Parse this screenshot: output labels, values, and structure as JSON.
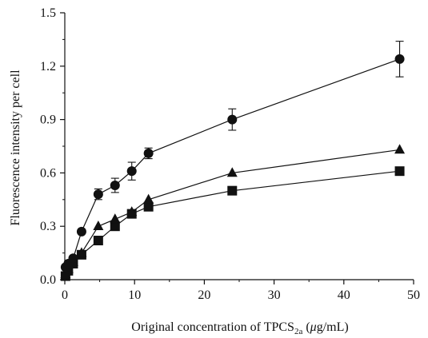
{
  "chart_data": {
    "type": "scatter",
    "title": "",
    "xlabel": {
      "pre": "Original concentration of TPCS",
      "sub": "2a",
      "mid": " (",
      "italic": "μ",
      "post": "g/mL)"
    },
    "ylabel": "Fluorescence intensity per cell",
    "xlim": [
      0,
      50
    ],
    "ylim": [
      0,
      1.5
    ],
    "xticks": [
      "0",
      "10",
      "20",
      "30",
      "40",
      "50"
    ],
    "yticks": [
      "0.0",
      "0.3",
      "0.6",
      "0.9",
      "1.2",
      "1.5"
    ],
    "grid": false,
    "legend": "none",
    "series": [
      {
        "marker": "circle",
        "x": [
          0.1,
          0.5,
          1.2,
          2.4,
          4.8,
          7.2,
          9.6,
          12,
          24,
          48
        ],
        "y": [
          0.07,
          0.09,
          0.12,
          0.27,
          0.48,
          0.53,
          0.61,
          0.71,
          0.9,
          1.24
        ],
        "err": [
          0,
          0,
          0,
          0,
          0.03,
          0.04,
          0.05,
          0.03,
          0.06,
          0.1
        ]
      },
      {
        "marker": "triangle",
        "x": [
          0.1,
          0.5,
          1.2,
          2.4,
          4.8,
          7.2,
          9.6,
          12,
          24,
          48
        ],
        "y": [
          0.03,
          0.06,
          0.1,
          0.15,
          0.3,
          0.34,
          0.38,
          0.45,
          0.6,
          0.73
        ],
        "err": [
          0,
          0,
          0,
          0,
          0,
          0,
          0,
          0,
          0,
          0
        ]
      },
      {
        "marker": "square",
        "x": [
          0.1,
          0.5,
          1.2,
          2.4,
          4.8,
          7.2,
          9.6,
          12,
          24,
          48
        ],
        "y": [
          0.02,
          0.05,
          0.09,
          0.14,
          0.22,
          0.3,
          0.37,
          0.41,
          0.5,
          0.61
        ],
        "err": [
          0,
          0,
          0,
          0,
          0,
          0,
          0,
          0,
          0,
          0
        ]
      }
    ],
    "colors": {
      "marker": "#111111",
      "line": "#111111"
    }
  }
}
